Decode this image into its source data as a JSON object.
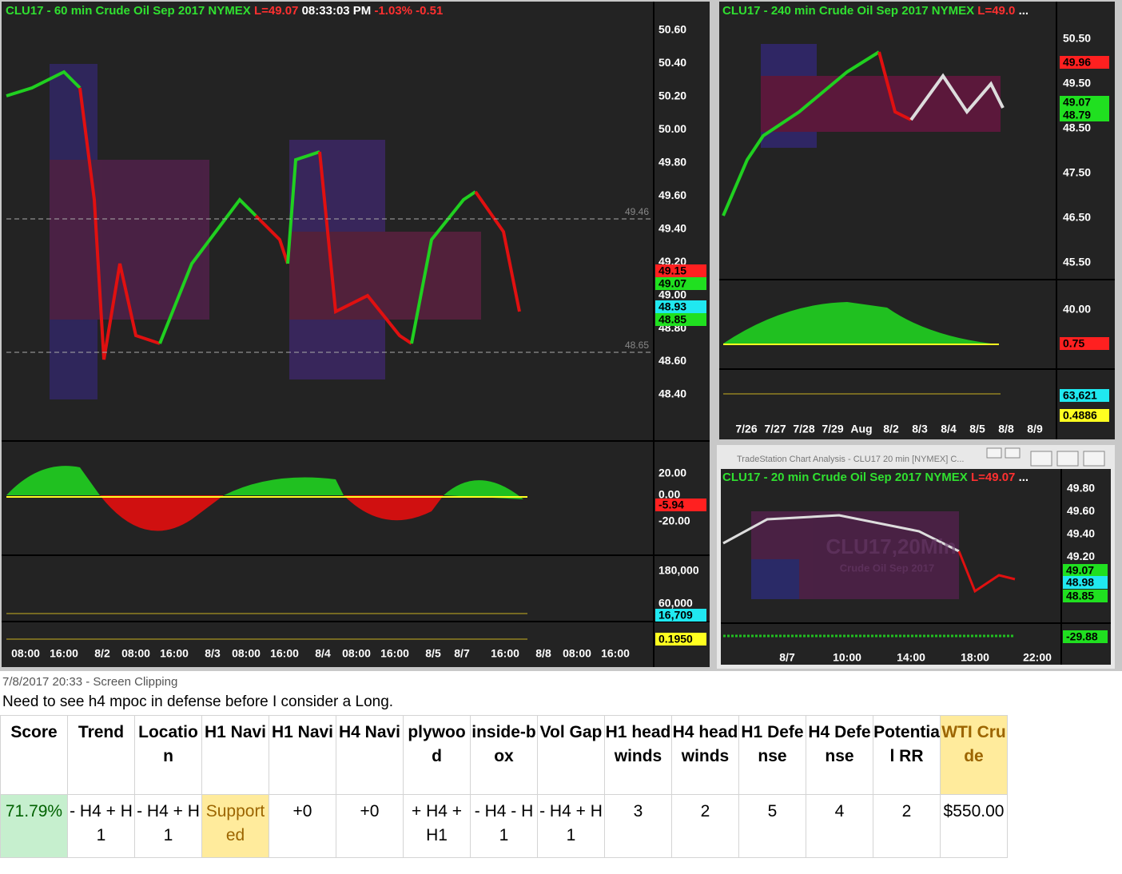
{
  "main_chart": {
    "title": "CLU17 - 60 min  Crude Oil Sep 2017  NYMEX",
    "last": "L=49.07",
    "time": "08:33:03 PM",
    "change_pct": "-1.03%",
    "change": "-0.51",
    "y_labels": [
      "50.60",
      "50.40",
      "50.20",
      "50.00",
      "49.80",
      "49.60",
      "49.40",
      "49.20",
      "49.00",
      "48.80",
      "48.60",
      "48.40"
    ],
    "price_markers": [
      {
        "label": "49.15",
        "color": "#ff2020"
      },
      {
        "label": "49.07",
        "color": "#20e020"
      },
      {
        "label": "48.93",
        "color": "#20e8f0"
      },
      {
        "label": "48.85",
        "color": "#20e020"
      }
    ],
    "level_labels": [
      "49.46",
      "48.65"
    ],
    "osc_labels": [
      "20.00",
      "0.00",
      "-20.00"
    ],
    "osc_marker": {
      "label": "-5.94",
      "color": "#ff2020"
    },
    "volume_labels": [
      "180,000",
      "60,000"
    ],
    "volume_marker": {
      "label": "16,709",
      "color": "#20e8f0"
    },
    "ratio_marker": {
      "label": "0.1950",
      "color": "#ffff20"
    },
    "x_labels": [
      "08:00",
      "16:00",
      "8/2",
      "08:00",
      "16:00",
      "8/3",
      "08:00",
      "16:00",
      "8/4",
      "08:00",
      "16:00",
      "8/5",
      "8/7",
      "16:00",
      "8/8",
      "08:00",
      "16:00"
    ]
  },
  "h4_chart": {
    "title": "CLU17 - 240 min  Crude Oil Sep 2017  NYMEX",
    "last": "L=49.0",
    "ellipsis": "...",
    "y_labels": [
      "50.50",
      "49.50",
      "48.50",
      "47.50",
      "46.50",
      "45.50"
    ],
    "price_markers": [
      {
        "label": "49.96",
        "color": "#ff2020"
      },
      {
        "label": "49.07",
        "color": "#20e020"
      },
      {
        "label": "48.79",
        "color": "#20e020"
      }
    ],
    "osc_labels": [
      "40.00"
    ],
    "osc_marker": {
      "label": "0.75",
      "color": "#ff2020"
    },
    "volume_marker": {
      "label": "63,621",
      "color": "#20e8f0"
    },
    "ratio_marker": {
      "label": "0.4886",
      "color": "#ffff20"
    },
    "x_labels": [
      "7/26",
      "7/27",
      "7/28",
      "7/29",
      "Aug",
      "8/2",
      "8/3",
      "8/4",
      "8/5",
      "8/8",
      "8/9"
    ]
  },
  "m20_window": {
    "window_title": "TradeStation Chart Analysis - CLU17 20 min [NYMEX] C...",
    "title": "CLU17 - 20 min  Crude Oil Sep 2017  NYMEX",
    "last": "L=49.07",
    "ellipsis": "...",
    "watermark": "CLU17,20Min",
    "watermark_sub": "Crude Oil Sep 2017",
    "y_labels": [
      "49.80",
      "49.60",
      "49.40",
      "49.20"
    ],
    "price_markers": [
      {
        "label": "49.07",
        "color": "#20e020"
      },
      {
        "label": "48.98",
        "color": "#20e8f0"
      },
      {
        "label": "48.85",
        "color": "#20e020"
      }
    ],
    "osc_marker": {
      "label": "-29.88",
      "color": "#20e020"
    },
    "x_labels": [
      "8/7",
      "10:00",
      "14:00",
      "18:00",
      "22:00"
    ]
  },
  "clipping": {
    "caption": "7/8/2017 20:33 - Screen Clipping",
    "note": "Need to see h4 mpoc in defense before I consider a Long."
  },
  "table": {
    "header": [
      "Score",
      "Trend",
      "Location",
      "H1 Navi",
      "H1 Navi",
      "H4 Navi",
      "plywood",
      "inside-box",
      "Vol Gap",
      "H1 headwinds",
      "H4 headwinds",
      "H1 Defense",
      "H4 Defense",
      "Potential RR",
      "WTI Crude"
    ],
    "rows": [
      [
        "71.79%",
        "- H4 + H1",
        "- H4 + H1",
        "Supported",
        "+0",
        "+0",
        "+ H4 + H1",
        "- H4 - H1",
        "- H4 + H1",
        "3",
        "2",
        "5",
        "4",
        "2",
        "$550.00"
      ]
    ]
  }
}
